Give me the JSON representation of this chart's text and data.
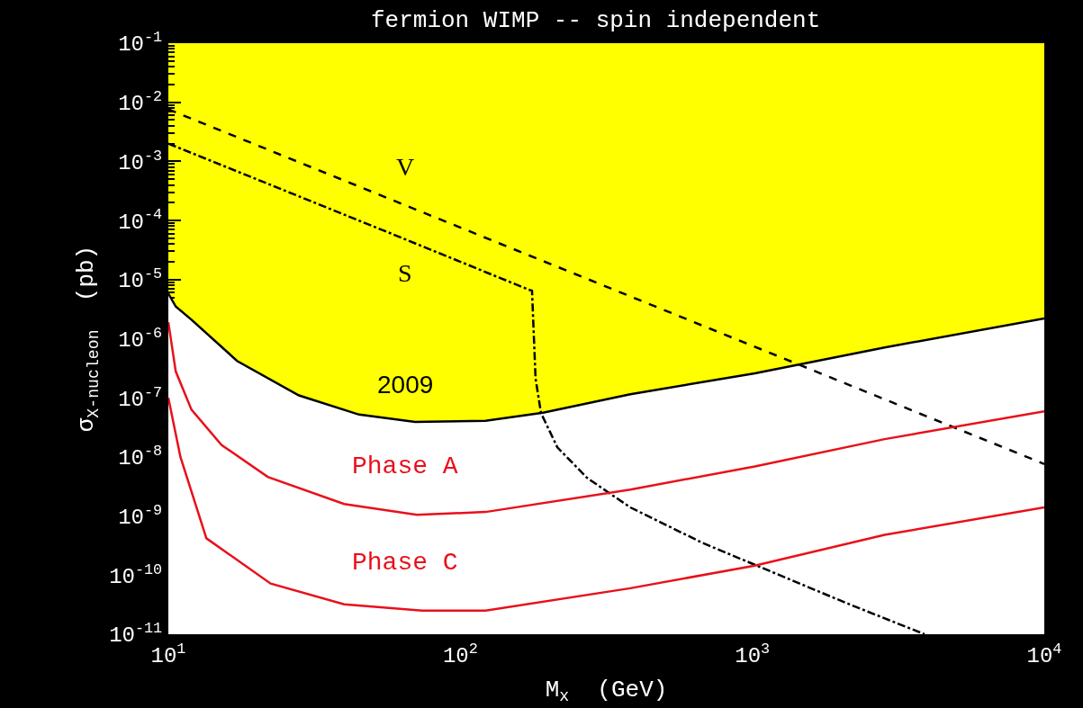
{
  "chart_data": {
    "type": "line",
    "title": "fermion WIMP -- spin independent",
    "xlabel": "M$_{x}$  (GeV)",
    "ylabel": "σ$_{X-nucleon}$  (pb)",
    "log": "xy",
    "xlim": [
      10,
      10000
    ],
    "ylim": [
      1e-11,
      0.1
    ],
    "xticks": [
      {
        "value": 10,
        "label": "10$^{1}$"
      },
      {
        "value": 100,
        "label": "10$^{2}$"
      },
      {
        "value": 1000,
        "label": "10$^{3}$"
      },
      {
        "value": 10000,
        "label": "10$^{4}$"
      }
    ],
    "yticks": [
      {
        "value": 1e-11,
        "label": "10$^{-11}$"
      },
      {
        "value": 1e-10,
        "label": "10$^{-10}$"
      },
      {
        "value": 1e-09,
        "label": "10$^{-9}$"
      },
      {
        "value": 1e-08,
        "label": "10$^{-8}$"
      },
      {
        "value": 1e-07,
        "label": "10$^{-7}$"
      },
      {
        "value": 1e-06,
        "label": "10$^{-6}$"
      },
      {
        "value": 1e-05,
        "label": "10$^{-5}$"
      },
      {
        "value": 0.0001,
        "label": "10$^{-4}$"
      },
      {
        "value": 0.001,
        "label": "10$^{-3}$"
      },
      {
        "value": 0.01,
        "label": "10$^{-2}$"
      },
      {
        "value": 0.1,
        "label": "10$^{-1}$"
      }
    ],
    "grid": false,
    "series": [
      {
        "name": "2009",
        "type": "area",
        "color": "#000000",
        "line_style": "solid",
        "x": [
          10,
          10.6,
          12,
          17.2,
          28,
          45,
          70,
          122,
          192,
          382,
          1020,
          2840,
          10000
        ],
        "values": [
          5.8e-06,
          3.5e-06,
          2.1e-06,
          4.2e-07,
          1.1e-07,
          5.2e-08,
          3.9e-08,
          4.1e-08,
          5.6e-08,
          1.15e-07,
          2.6e-07,
          7.1e-07,
          2.2e-06
        ]
      },
      {
        "name": "V",
        "color": "#000000",
        "line_style": "dashed",
        "x": [
          10,
          100,
          1000,
          10000
        ],
        "values": [
          0.0076,
          7.6e-05,
          7.6e-07,
          7.6e-09
        ]
      },
      {
        "name": "S",
        "color": "#000000",
        "line_style": "dashdot",
        "x": [
          10,
          58,
          171,
          176,
          181,
          189,
          215,
          272,
          382,
          676,
          1200,
          2120,
          3760,
          3890
        ],
        "values": [
          0.002,
          6e-05,
          6.8e-06,
          6.5e-06,
          2.1e-07,
          5.5e-08,
          1.45e-08,
          4.4e-09,
          1.4e-09,
          3.5e-10,
          1.07e-10,
          3.3e-11,
          1.07e-11,
          1e-11
        ]
      },
      {
        "name": "Phase A",
        "color": "#e8101a",
        "line_style": "solid",
        "x": [
          10,
          10.6,
          12,
          15.2,
          21.9,
          40,
          71,
          122,
          382,
          1020,
          2840,
          10000
        ],
        "values": [
          1.9e-06,
          2.8e-07,
          6.3e-08,
          1.6e-08,
          4.6e-09,
          1.6e-09,
          1.05e-09,
          1.17e-09,
          2.8e-09,
          6.9e-09,
          2e-08,
          5.9e-08
        ]
      },
      {
        "name": "Phase C",
        "color": "#e8101a",
        "line_style": "solid",
        "x": [
          10,
          11,
          13.5,
          22.4,
          40,
          74,
          122,
          382,
          1020,
          2840,
          10000
        ],
        "values": [
          1e-07,
          1e-08,
          4.2e-10,
          7.2e-11,
          3.2e-11,
          2.5e-11,
          2.5e-11,
          6e-11,
          1.45e-10,
          4.8e-10,
          1.4e-09
        ]
      }
    ]
  }
}
